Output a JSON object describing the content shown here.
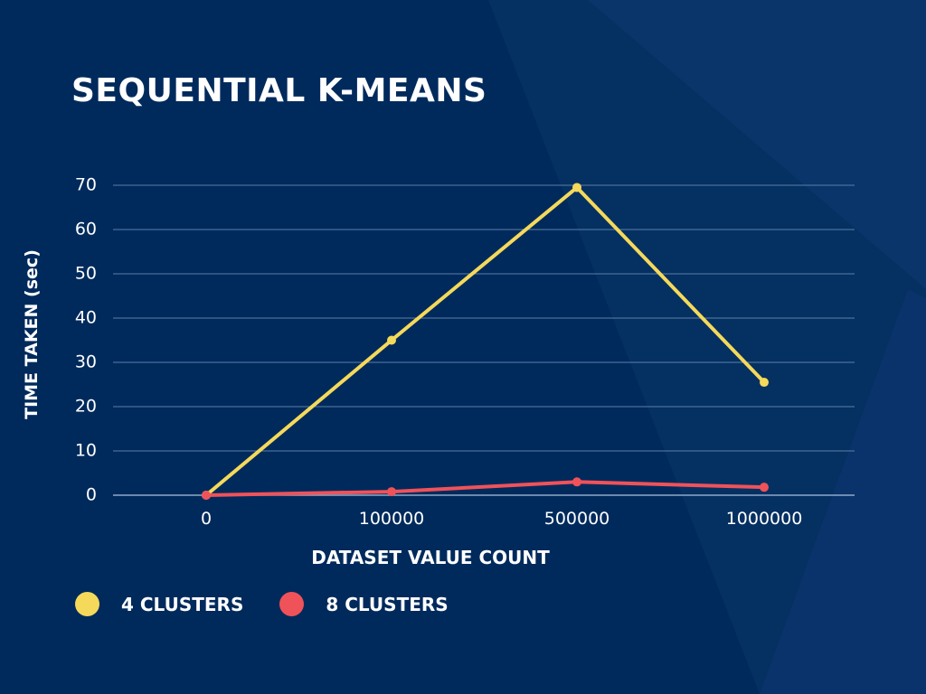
{
  "chart_data": {
    "type": "line",
    "title": "SEQUENTIAL K-MEANS",
    "xlabel": "DATASET VALUE COUNT",
    "ylabel": "TIME TAKEN (sec)",
    "categories": [
      "0",
      "100000",
      "500000",
      "1000000"
    ],
    "series": [
      {
        "name": "4 CLUSTERS",
        "color": "#f5d95a",
        "values": [
          0,
          35,
          69.5,
          25.5
        ]
      },
      {
        "name": "8 CLUSTERS",
        "color": "#f0525a",
        "values": [
          0,
          0.8,
          3,
          1.8
        ]
      }
    ],
    "ylim": [
      0,
      70
    ],
    "yticks": [
      0,
      10,
      20,
      30,
      40,
      50,
      60,
      70
    ],
    "grid": true,
    "legend_position": "bottom-left"
  },
  "colors": {
    "background": "#002a5c",
    "grid": "#5b7fa8",
    "text": "#ffffff"
  }
}
